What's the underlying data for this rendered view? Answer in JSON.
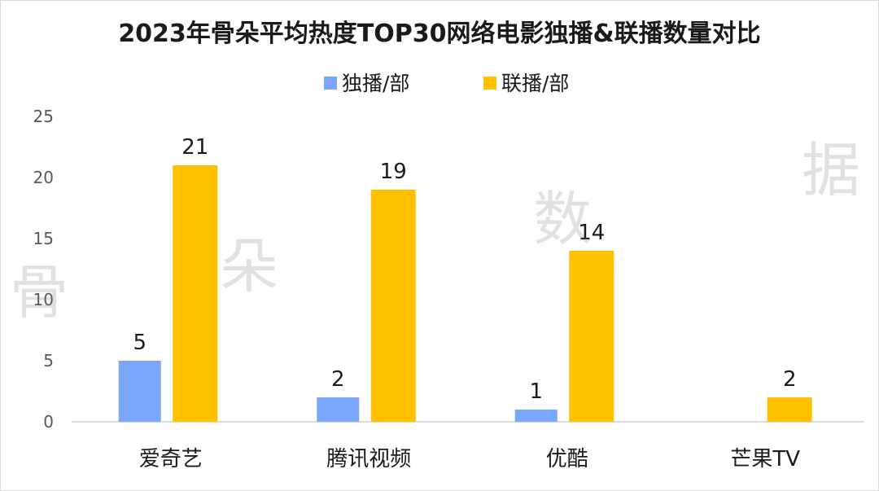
{
  "chart_data": {
    "type": "bar",
    "title": "2023年骨朵平均热度TOP30网络电影独播&联播数量对比",
    "categories": [
      "爱奇艺",
      "腾讯视频",
      "优酷",
      "芒果TV"
    ],
    "series": [
      {
        "name": "独播/部",
        "color": "#7aa7fb",
        "values": [
          5,
          2,
          1,
          0
        ],
        "labels": [
          "5",
          "2",
          "1",
          ""
        ]
      },
      {
        "name": "联播/部",
        "color": "#ffc000",
        "values": [
          21,
          19,
          14,
          2
        ],
        "labels": [
          "21",
          "19",
          "14",
          "2"
        ]
      }
    ],
    "ylim": [
      0,
      25
    ],
    "yticks": [
      0,
      5,
      10,
      15,
      20,
      25
    ],
    "xlabel": "",
    "ylabel": "",
    "legend": "top-center",
    "grid": false
  },
  "watermark": [
    "骨",
    "朵",
    "数",
    "据"
  ]
}
